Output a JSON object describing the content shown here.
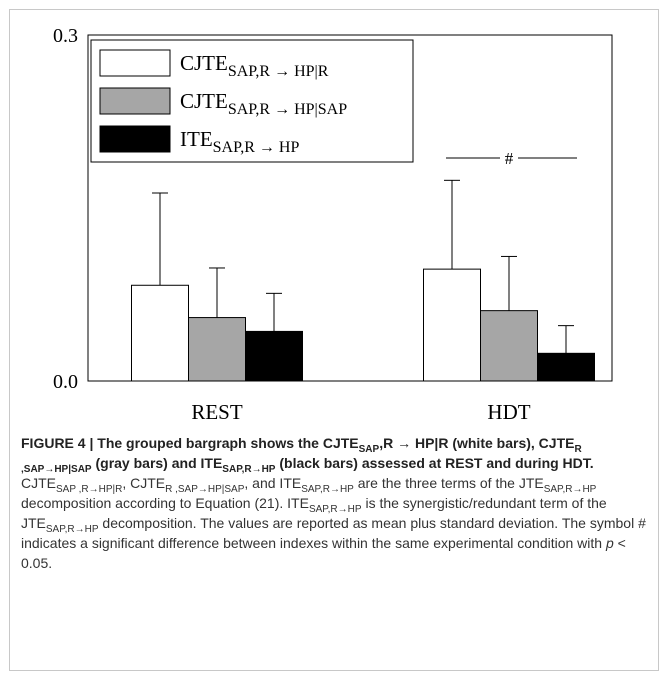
{
  "chart_data": {
    "type": "bar",
    "categories": [
      "REST",
      "HDT"
    ],
    "series": [
      {
        "name": "CJTE",
        "name_subscript": "SAP,R → HP|R",
        "color": "#ffffff",
        "values": [
          0.083,
          0.097
        ],
        "errors": [
          0.08,
          0.077
        ]
      },
      {
        "name": "CJTE",
        "name_subscript": "SAP,R → HP|SAP",
        "color": "#a6a6a6",
        "values": [
          0.055,
          0.061
        ],
        "errors": [
          0.043,
          0.047
        ]
      },
      {
        "name": "ITE",
        "name_subscript": "SAP,R → HP",
        "color": "#000000",
        "values": [
          0.043,
          0.024
        ],
        "errors": [
          0.033,
          0.024
        ]
      }
    ],
    "ylim": [
      0,
      0.3
    ],
    "yticks": [
      {
        "value": 0,
        "label": "0.0"
      },
      0.3
    ],
    "legend": "top-left",
    "annotation": {
      "text": "#",
      "category": 1
    }
  },
  "caption": [
    {
      "text": "FIGURE 4 | The grouped bargraph shows the CJTE",
      "style": "bold"
    },
    {
      "text": "SAP",
      "style": "bold-sub"
    },
    {
      "text": ",R → HP|R (white bars), CJTE",
      "style": "bold"
    },
    {
      "text": "R ,SAP→HP|SAP",
      "style": "bold-sub"
    },
    {
      "text": " (gray bars) and ITE",
      "style": "bold"
    },
    {
      "text": "SAP,R→HP",
      "style": "bold-sub"
    },
    {
      "text": " (black bars) assessed at REST and during HDT.",
      "style": "bold"
    },
    {
      "text": " CJTE",
      "style": "normal"
    },
    {
      "text": "SAP ,R→HP|R",
      "style": "sub"
    },
    {
      "text": ", CJTE",
      "style": "normal"
    },
    {
      "text": "R ,SAP→HP|SAP",
      "style": "sub"
    },
    {
      "text": ", and ITE",
      "style": "normal"
    },
    {
      "text": "SAP,R→HP",
      "style": "sub"
    },
    {
      "text": " are the three terms of the JTE",
      "style": "normal"
    },
    {
      "text": "SAP,R→HP",
      "style": "sub"
    },
    {
      "text": " decomposition according to Equation (21). ITE",
      "style": "normal"
    },
    {
      "text": "SAP,R→HP",
      "style": "sub"
    },
    {
      "text": " is the synergistic/redundant term of the JTE",
      "style": "normal"
    },
    {
      "text": "SAP,R→HP",
      "style": "sub"
    },
    {
      "text": " decomposition. The values are reported as mean plus standard deviation. The symbol # indicates a significant difference between indexes within the same experimental condition with ",
      "style": "normal"
    },
    {
      "text": "p",
      "style": "italic"
    },
    {
      "text": " < 0.05.",
      "style": "normal"
    }
  ]
}
